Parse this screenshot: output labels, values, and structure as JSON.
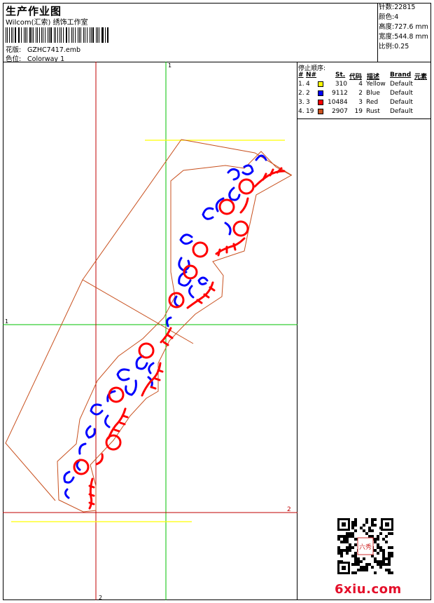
{
  "header": {
    "title": "生产作业图",
    "studio": "Wilcom(汇索) 绣饰工作室",
    "pattern_label": "花版:",
    "pattern_value": "GZHC7417.emb",
    "colorway_label": "色位:",
    "colorway_value": "Colorway 1"
  },
  "stats": [
    {
      "label": "针数:",
      "value": "22815"
    },
    {
      "label": "颜色:",
      "value": "4"
    },
    {
      "label": "高度:",
      "value": "727.6 mm"
    },
    {
      "label": "宽度:",
      "value": "544.8 mm"
    },
    {
      "label": "比例:",
      "value": "0.25"
    }
  ],
  "stop_sequence": {
    "title": "停止顺序:",
    "columns": [
      "#",
      "N#",
      "St.",
      "代码",
      "描述",
      "Brand",
      "元素"
    ],
    "rows": [
      {
        "index": "1.",
        "n": "4",
        "color": "#ffff00",
        "st": "310",
        "code": "4",
        "desc": "Yellow",
        "brand": "Default"
      },
      {
        "index": "2.",
        "n": "2",
        "color": "#0000ff",
        "st": "9112",
        "code": "2",
        "desc": "Blue",
        "brand": "Default"
      },
      {
        "index": "3.",
        "n": "3",
        "color": "#ff0000",
        "st": "10484",
        "code": "3",
        "desc": "Red",
        "brand": "Default"
      },
      {
        "index": "4.",
        "n": "19",
        "color": "#c8501e",
        "st": "2907",
        "code": "19",
        "desc": "Rust",
        "brand": "Default"
      }
    ]
  },
  "canvas": {
    "axis_top_label": "1",
    "axis_left_label": "1",
    "axis_right_label": "2",
    "axis_bottom_label": "2",
    "colors": {
      "guide_green": "#00c000",
      "guide_red": "#c00000",
      "guide_yellow": "#ffff00",
      "outline": "#c8501e",
      "blue": "#0000ff",
      "red": "#ff0000"
    }
  },
  "footer": {
    "site": "6xiu.com",
    "stamp": "六秀",
    "qr_icon": "qr-code-icon"
  }
}
